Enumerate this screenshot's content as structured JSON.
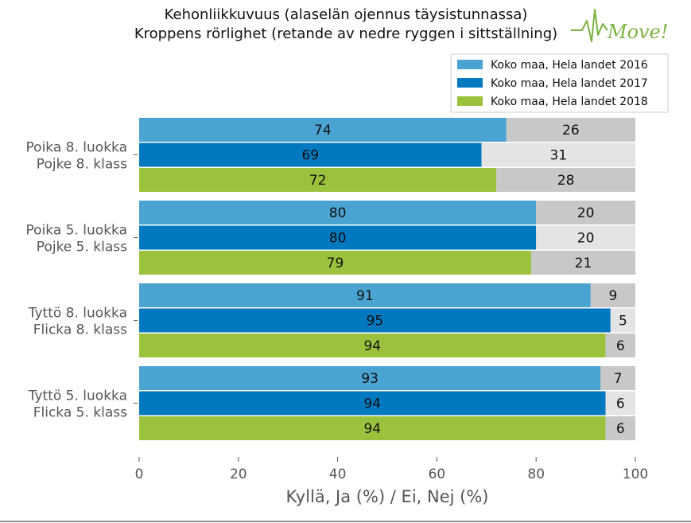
{
  "chart_data": {
    "type": "bar",
    "orientation": "horizontal",
    "stacked": true,
    "title": [
      "Kehonliikkuvuus (alaselän ojennus täysistunnassa)",
      "Kroppens rörlighet (retande av nedre ryggen i sittställning)"
    ],
    "xlabel": "Kyllä, Ja (%) / Ei, Nej (%)",
    "xlim": [
      0,
      100
    ],
    "xticks": [
      0,
      20,
      40,
      60,
      80,
      100
    ],
    "grid": false,
    "legend_position": "top-right",
    "categories": [
      [
        "Poika 8. luokka",
        "Pojke 8. klass"
      ],
      [
        "Poika 5. luokka",
        "Pojke 5. klass"
      ],
      [
        "Tyttö 8. luokka",
        "Flicka 8. klass"
      ],
      [
        "Tyttö 5. luokka",
        "Flicka 5. klass"
      ]
    ],
    "series": [
      {
        "name": "Koko maa, Hela landet 2016",
        "yes": [
          74,
          80,
          91,
          93
        ],
        "no": [
          26,
          20,
          9,
          7
        ]
      },
      {
        "name": "Koko maa, Hela landet 2017",
        "yes": [
          69,
          80,
          95,
          94
        ],
        "no": [
          31,
          20,
          5,
          6
        ]
      },
      {
        "name": "Koko maa, Hela landet 2018",
        "yes": [
          72,
          79,
          94,
          94
        ],
        "no": [
          28,
          21,
          6,
          6
        ]
      }
    ],
    "colors": {
      "yes": [
        "#4aa3d0",
        "#0079c1",
        "#9ac23c"
      ],
      "no": [
        "#c8c8c8",
        "#e4e4e4",
        "#c8c8c8"
      ]
    }
  },
  "logo": {
    "text": "Move!"
  }
}
